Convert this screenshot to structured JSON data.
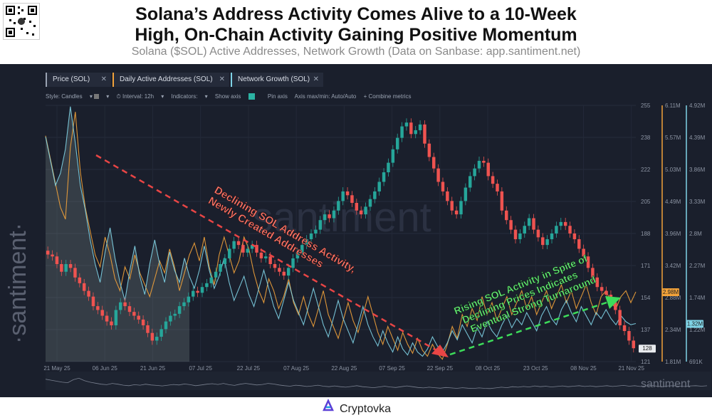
{
  "header": {
    "title_line1": "Solana’s Address Activity Comes Alive to a 10-Week",
    "title_line2": "High, On-Chain Activity Gaining Positive Momentum",
    "subtitle": "Solana ($SOL) Active Addresses, Network Growth (Data on Sanbase: app.santiment.net)"
  },
  "tabs": [
    {
      "label": "Price (SOL)",
      "color": "#9aa3b2"
    },
    {
      "label": "Daily Active Addresses (SOL)",
      "color": "#f2a23a"
    },
    {
      "label": "Network Growth (SOL)",
      "color": "#7fd3e6"
    }
  ],
  "toolbar": {
    "style": "Style: Candles",
    "interval": "Interval: 12h",
    "indicators": "Indicators:",
    "show_axis": "Show axis",
    "pin_axis": "Pin axis",
    "axis_maxmin": "Axis max/min: Auto/Auto",
    "combine": "+ Combine metrics"
  },
  "watermark": "·santiment·",
  "watermark_center": "santiment",
  "annotations": {
    "red": [
      "Declining SOL Address Activity,",
      "Newly Created Addresses"
    ],
    "green": [
      "Rising SOL Activity in Spite of",
      "Declining Prices Indicates",
      "Eventual Strong Turnaround"
    ]
  },
  "footer": {
    "brand": "Cryptovka"
  },
  "chart_data": {
    "type": "line",
    "x_tick_labels": [
      "21 May 25",
      "06 Jun 25",
      "21 Jun 25",
      "07 Jul 25",
      "22 Jul 25",
      "07 Aug 25",
      "22 Aug 25",
      "07 Sep 25",
      "22 Sep 25",
      "08 Oct 25",
      "23 Oct 25",
      "08 Nov 25",
      "21 Nov 25"
    ],
    "axes": {
      "price": {
        "ticks": [
          "255",
          "238",
          "222",
          "205",
          "188",
          "171",
          "154",
          "137",
          "121"
        ],
        "current": "128",
        "range": [
          121,
          255
        ]
      },
      "daa": {
        "ticks": [
          "6.11M",
          "5.57M",
          "5.03M",
          "4.49M",
          "3.96M",
          "3.42M",
          "2.88M",
          "2.34M",
          "1.81M"
        ],
        "current": "2.98M",
        "range": [
          1.81,
          6.11
        ],
        "unit": "M",
        "color": "#f2a23a"
      },
      "growth": {
        "ticks": [
          "4.92M",
          "4.39M",
          "3.86M",
          "3.33M",
          "2.8M",
          "2.27M",
          "1.74M",
          "1.22M",
          "691K"
        ],
        "current": "1.32M",
        "range": [
          0.691,
          4.92
        ],
        "unit": "M",
        "color": "#7fd3e6"
      }
    },
    "series": [
      {
        "name": "Price (SOL)",
        "color_up": "#26a69a",
        "color_down": "#ef5350",
        "values": [
          177,
          176,
          172,
          168,
          172,
          170,
          165,
          162,
          158,
          155,
          150,
          148,
          145,
          142,
          140,
          148,
          152,
          150,
          147,
          145,
          143,
          140,
          136,
          132,
          134,
          138,
          142,
          145,
          146,
          150,
          152,
          155,
          158,
          157,
          160,
          162,
          165,
          168,
          172,
          175,
          180,
          184,
          182,
          178,
          180,
          182,
          178,
          175,
          176,
          172,
          170,
          168,
          166,
          170,
          175,
          178,
          182,
          185,
          188,
          190,
          195,
          198,
          196,
          200,
          205,
          210,
          208,
          204,
          200,
          198,
          202,
          206,
          210,
          215,
          220,
          225,
          232,
          238,
          244,
          246,
          240,
          242,
          245,
          235,
          228,
          222,
          215,
          210,
          205,
          200,
          198,
          205,
          212,
          218,
          222,
          226,
          225,
          218,
          214,
          210,
          200,
          195,
          190,
          185,
          188,
          192,
          196,
          190,
          186,
          182,
          185,
          188,
          192,
          194,
          192,
          188,
          185,
          180,
          176,
          170,
          165,
          160,
          158,
          156,
          152,
          148,
          140,
          137,
          132,
          128
        ]
      },
      {
        "name": "Daily Active Addresses (SOL)",
        "color": "#f2a23a",
        "values": [
          5.6,
          5.2,
          4.8,
          4.4,
          4.2,
          5.4,
          6.0,
          5.0,
          4.4,
          4.0,
          3.6,
          3.4,
          3.9,
          3.6,
          3.2,
          3.0,
          3.4,
          3.2,
          3.6,
          3.3,
          3.1,
          2.9,
          3.2,
          3.5,
          3.3,
          3.7,
          3.4,
          3.0,
          3.3,
          3.6,
          3.8,
          3.5,
          3.9,
          3.4,
          3.1,
          3.6,
          3.9,
          3.6,
          3.3,
          3.5,
          3.9,
          3.7,
          3.3,
          3.0,
          2.8,
          3.2,
          3.0,
          2.7,
          2.9,
          3.2,
          2.8,
          2.6,
          2.9,
          2.6,
          2.4,
          2.7,
          3.0,
          2.6,
          2.4,
          2.2,
          2.5,
          2.8,
          2.5,
          2.3,
          2.6,
          2.9,
          2.6,
          2.3,
          2.1,
          2.4,
          2.2,
          2.0,
          2.3,
          2.1,
          1.95,
          2.2,
          2.0,
          1.9,
          2.1,
          1.95,
          1.85,
          2.1,
          2.4,
          2.2,
          2.6,
          2.4,
          2.7,
          2.5,
          2.9,
          2.6,
          2.8,
          2.5,
          2.7,
          2.9,
          2.6,
          2.8,
          3.0,
          2.7,
          2.9,
          2.6,
          2.8,
          3.0,
          2.7,
          2.9,
          3.1,
          2.8,
          3.0,
          2.7,
          2.9,
          3.1,
          2.8,
          2.6,
          2.9,
          3.0,
          2.8,
          2.7,
          2.9,
          3.0,
          2.8,
          2.98
        ]
      },
      {
        "name": "Network Growth (SOL)",
        "color": "#7fd3e6",
        "values": [
          4.4,
          4.0,
          3.6,
          3.8,
          4.2,
          4.9,
          4.3,
          3.6,
          3.2,
          2.7,
          2.3,
          2.0,
          2.5,
          2.9,
          2.4,
          2.0,
          1.7,
          2.2,
          2.6,
          2.1,
          1.8,
          2.3,
          2.7,
          2.3,
          2.0,
          2.5,
          2.2,
          2.0,
          2.4,
          2.1,
          1.9,
          2.2,
          2.6,
          2.2,
          1.9,
          2.1,
          2.4,
          2.0,
          1.7,
          1.9,
          2.1,
          1.8,
          1.6,
          1.9,
          2.2,
          1.9,
          1.6,
          1.4,
          1.7,
          2.0,
          1.7,
          1.5,
          1.3,
          1.6,
          1.9,
          1.6,
          1.3,
          1.1,
          1.4,
          1.7,
          1.4,
          1.2,
          1.0,
          1.3,
          1.6,
          1.3,
          1.1,
          0.95,
          1.2,
          1.0,
          0.85,
          1.1,
          0.9,
          0.8,
          1.0,
          0.85,
          0.78,
          0.9,
          1.1,
          0.95,
          0.85,
          1.0,
          1.2,
          1.05,
          1.3,
          1.15,
          1.0,
          1.25,
          1.1,
          1.35,
          1.2,
          1.1,
          1.3,
          1.45,
          1.25,
          1.4,
          1.3,
          1.5,
          1.35,
          1.2,
          1.45,
          1.6,
          1.4,
          1.3,
          1.55,
          1.7,
          1.5,
          1.35,
          1.6,
          1.45,
          1.3,
          1.5,
          1.4,
          1.55,
          1.4,
          1.3,
          1.45,
          1.35,
          1.3,
          1.32
        ]
      }
    ]
  }
}
